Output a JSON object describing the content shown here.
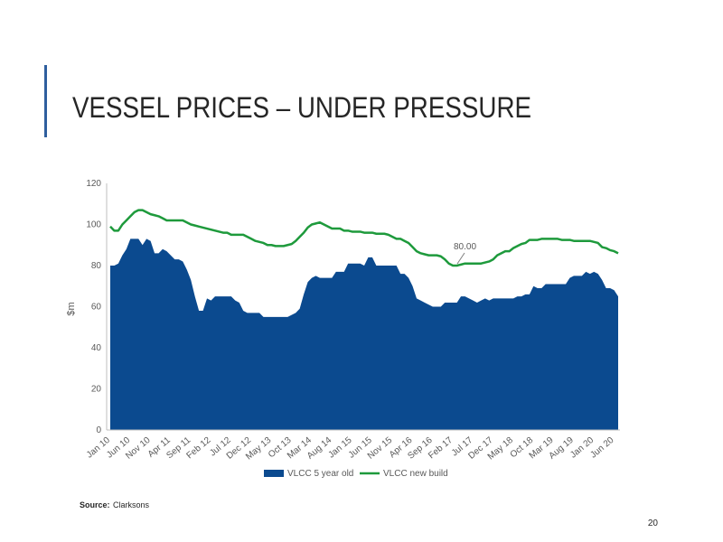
{
  "slide": {
    "title": "VESSEL PRICES – UNDER PRESSURE",
    "source_label": "Source:",
    "source": "Clarksons",
    "page_number": "20"
  },
  "chart_data": {
    "type": "area-line",
    "y_label": "$m",
    "annotation": "80.00",
    "grid": false,
    "ylim": [
      0,
      120
    ],
    "yticks": [
      0,
      20,
      40,
      60,
      80,
      100,
      120
    ],
    "categories": [
      "Jan 10",
      null,
      null,
      null,
      null,
      "Jun 10",
      null,
      null,
      null,
      null,
      "Nov 10",
      null,
      null,
      null,
      null,
      "Apr 11",
      null,
      null,
      null,
      null,
      "Sep 11",
      null,
      null,
      null,
      null,
      "Feb 12",
      null,
      null,
      null,
      null,
      "Jul 12",
      null,
      null,
      null,
      null,
      "Dec 12",
      null,
      null,
      null,
      null,
      "May 13",
      null,
      null,
      null,
      null,
      "Oct 13",
      null,
      null,
      null,
      null,
      "Mar 14",
      null,
      null,
      null,
      null,
      "Aug 14",
      null,
      null,
      null,
      null,
      "Jan 15",
      null,
      null,
      null,
      null,
      "Jun 15",
      null,
      null,
      null,
      null,
      "Nov 15",
      null,
      null,
      null,
      null,
      "Apr 16",
      null,
      null,
      null,
      null,
      "Sep 16",
      null,
      null,
      null,
      null,
      "Feb 17",
      null,
      null,
      null,
      null,
      "Jul 17",
      null,
      null,
      null,
      null,
      "Dec 17",
      null,
      null,
      null,
      null,
      "May 18",
      null,
      null,
      null,
      null,
      "Oct 18",
      null,
      null,
      null,
      null,
      "Mar 19",
      null,
      null,
      null,
      null,
      "Aug 19",
      null,
      null,
      null,
      null,
      "Jan 20",
      null,
      null,
      null,
      null,
      "Jun 20",
      null
    ],
    "series": [
      {
        "name": "VLCC 5 year old",
        "kind": "area",
        "color": "#0b4a8f",
        "values": [
          80,
          80,
          81,
          85,
          88,
          93,
          93,
          93,
          90,
          93,
          92,
          86,
          86,
          88,
          87,
          85,
          83,
          83,
          82,
          78,
          73,
          65,
          58,
          58,
          64,
          63,
          65,
          65,
          65,
          65,
          65,
          63,
          62,
          58,
          57,
          57,
          57,
          57,
          55,
          55,
          55,
          55,
          55,
          55,
          55,
          56,
          57,
          59,
          66,
          72,
          74,
          75,
          74,
          74,
          74,
          74,
          77,
          77,
          77,
          81,
          81,
          81,
          81,
          80,
          84,
          84,
          80,
          80,
          80,
          80,
          80,
          80,
          76,
          76,
          74,
          70,
          64,
          63,
          62,
          61,
          60,
          60,
          60,
          62,
          62,
          62,
          62,
          65,
          65,
          64,
          63,
          62,
          63,
          64,
          63,
          64,
          64,
          64,
          64,
          64,
          64,
          65,
          65,
          66,
          66,
          70,
          69,
          69,
          71,
          71,
          71,
          71,
          71,
          71,
          74,
          75,
          75,
          75,
          77,
          76,
          77,
          76,
          73,
          69,
          69,
          68,
          65
        ]
      },
      {
        "name": "VLCC new build",
        "kind": "line",
        "color": "#1e9a3c",
        "values": [
          99,
          97,
          97,
          100,
          102,
          104,
          106,
          107,
          107,
          106,
          105,
          104.5,
          104,
          103,
          102,
          102,
          102,
          102,
          102,
          101,
          100,
          99.5,
          99,
          98.5,
          98,
          97.5,
          97,
          96.5,
          96,
          96,
          95,
          95,
          95,
          95,
          94,
          93,
          92,
          91.5,
          91,
          90,
          90,
          89.5,
          89.5,
          89.5,
          90,
          90.5,
          92,
          94,
          96,
          98.5,
          100,
          100.5,
          101,
          100,
          99,
          98,
          98,
          98,
          97,
          97,
          96.5,
          96.5,
          96.5,
          96,
          96,
          96,
          95.5,
          95.5,
          95.5,
          95,
          94,
          93,
          93,
          92,
          91,
          89,
          87,
          86,
          85.5,
          85,
          85,
          85,
          84.5,
          83,
          81,
          80,
          80,
          80.5,
          81,
          81,
          81,
          81,
          81,
          81.5,
          82,
          83,
          85,
          86,
          87,
          87,
          88.5,
          89.5,
          90.5,
          91,
          92.5,
          92.5,
          92.5,
          93,
          93,
          93,
          93,
          93,
          92.5,
          92.5,
          92.5,
          92,
          92,
          92,
          92,
          92,
          91.5,
          91,
          89,
          88.5,
          87.5,
          87,
          86
        ]
      }
    ]
  }
}
